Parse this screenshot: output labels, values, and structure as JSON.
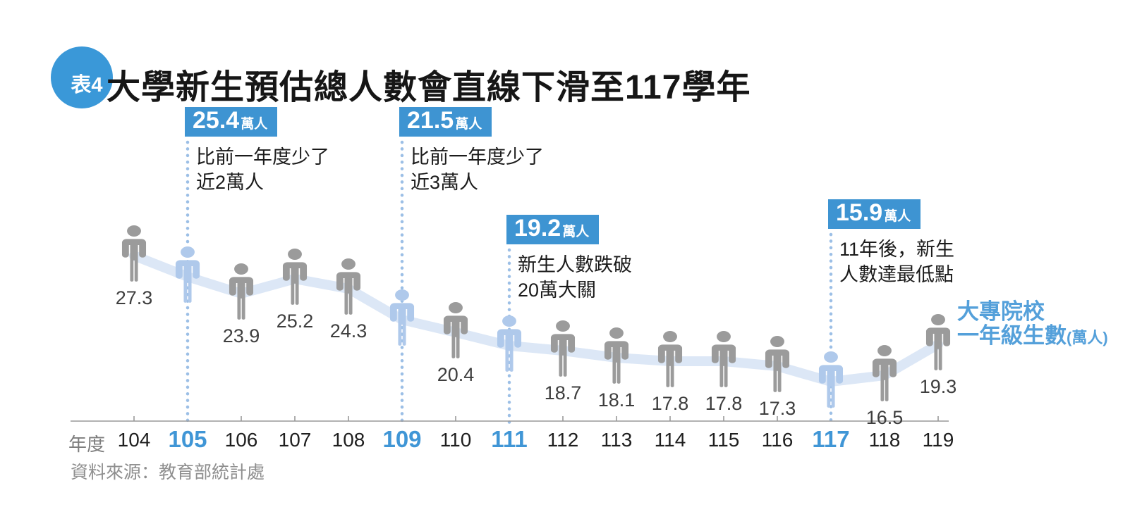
{
  "title": {
    "badge": "表4",
    "text": "大學新生預估總人數會直線下滑至117學年"
  },
  "x_axis": {
    "label": "年度"
  },
  "legend": {
    "line1": "大專院校",
    "line2": "一年級生數",
    "unit": "(萬人)"
  },
  "source": "資料來源：教育部統計處",
  "colors": {
    "accent": "#3e94d2",
    "badge": "#3a98d8",
    "highlight_text": "#4096d6",
    "figure_gray": "#9b9b9b",
    "figure_blue": "#afc9eb",
    "band": "#dce7f6",
    "dots": "#9cbfe6",
    "axis": "#999999"
  },
  "chart_data": {
    "type": "line",
    "title": "大學新生預估總人數會直線下滑至117學年",
    "xlabel": "年度",
    "ylabel": "大專院校一年級生數(萬人)",
    "x": [
      "104",
      "105",
      "106",
      "107",
      "108",
      "109",
      "110",
      "111",
      "112",
      "113",
      "114",
      "115",
      "116",
      "117",
      "118",
      "119"
    ],
    "series": [
      {
        "name": "大專院校一年級生數(萬人)",
        "values": [
          27.3,
          25.4,
          23.9,
          25.2,
          24.3,
          21.5,
          20.4,
          19.2,
          18.7,
          18.1,
          17.8,
          17.8,
          17.3,
          15.9,
          16.5,
          19.3
        ]
      }
    ],
    "ylim": [
      15,
      28
    ],
    "grid": false,
    "legend_position": "right",
    "highlighted": [
      "105",
      "109",
      "111",
      "117"
    ],
    "annotations": [
      {
        "year": "105",
        "value": "25.4",
        "unit": "萬人",
        "lines": [
          "比前一年度少了",
          "近2萬人"
        ]
      },
      {
        "year": "109",
        "value": "21.5",
        "unit": "萬人",
        "lines": [
          "比前一年度少了",
          "近3萬人"
        ]
      },
      {
        "year": "111",
        "value": "19.2",
        "unit": "萬人",
        "lines": [
          "新生人數跌破",
          "20萬大關"
        ]
      },
      {
        "year": "117",
        "value": "15.9",
        "unit": "萬人",
        "lines": [
          "11年後，新生",
          "人數達最低點"
        ]
      }
    ]
  }
}
